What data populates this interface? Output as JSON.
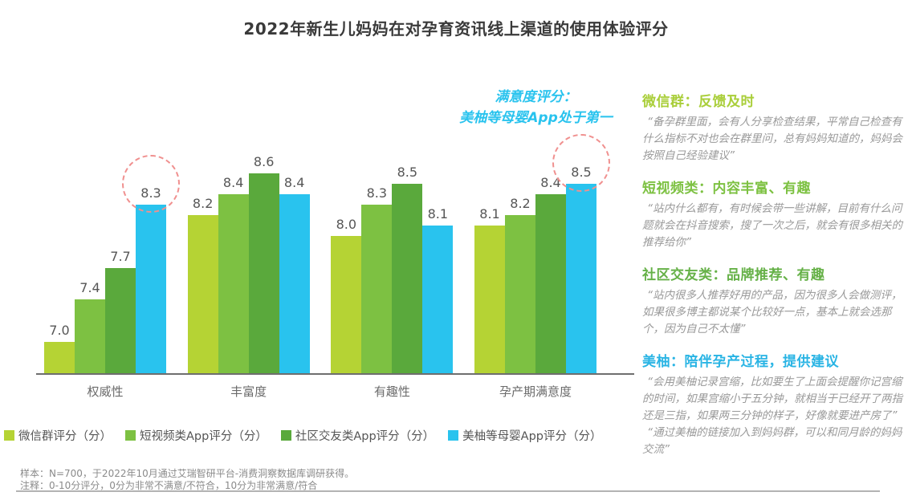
{
  "title": "2022年新生儿妈妈在对孕育资讯线上渠道的使用体验评分",
  "chart_data": {
    "type": "bar",
    "categories": [
      "权威性",
      "丰富度",
      "有趣性",
      "孕产期满意度"
    ],
    "series": [
      {
        "name": "微信群评分（分）",
        "color": "#b5d334",
        "values": [
          7.0,
          8.2,
          8.0,
          8.1
        ]
      },
      {
        "name": "短视频类App评分（分）",
        "color": "#7dc142",
        "values": [
          7.4,
          8.4,
          8.3,
          8.2
        ]
      },
      {
        "name": "社区交友类App评分（分）",
        "color": "#5aa93c",
        "values": [
          7.7,
          8.6,
          8.5,
          8.4
        ]
      },
      {
        "name": "美柚等母婴App评分（分）",
        "color": "#29c3ee",
        "values": [
          8.3,
          8.4,
          8.1,
          8.5
        ]
      }
    ],
    "ylim": [
      6.7,
      9.0
    ],
    "grid": false,
    "legend_position": "bottom",
    "value_label_decimals": 1,
    "annotation": {
      "line1": "满意度评分：",
      "line2": "美柚等母婴App处于第一",
      "color": "#29c3ee"
    },
    "highlight_circles": [
      {
        "category_index": 0,
        "series_index": 3,
        "color": "#f0908f"
      },
      {
        "category_index": 3,
        "series_index": 3,
        "color": "#f0908f"
      }
    ]
  },
  "right_panel": {
    "sections": [
      {
        "header": "微信群：反馈及时",
        "header_color": "#a9ce39",
        "quotes": [
          "“备孕群里面，会有人分享检查结果，平常自己检查有什么指标不对也会在群里问，总有妈妈知道的，妈妈会按照自己经验建议”"
        ]
      },
      {
        "header": "短视频类：内容丰富、有趣",
        "header_color": "#7dc142",
        "quotes": [
          "“站内什么都有，有时候会带一些讲解，目前有什么问题就会在抖音搜索，搜了一次之后，就会有很多相关的推荐给你”"
        ]
      },
      {
        "header": "社区交友类：品牌推荐、有趣",
        "header_color": "#66b148",
        "quotes": [
          "“站内很多人推荐好用的产品，因为很多人会做测评，如果很多博主都说某个比较好一点，基本上就会选那个，因为自己不太懂”"
        ]
      },
      {
        "header": "美柚：陪伴孕产过程，提供建议",
        "header_color": "#29b4e4",
        "quotes": [
          "“会用美柚记录宫缩，比如要生了上面会提醒你记宫缩的时间，如果宫缩小于五分钟，就相当于已经开了两指还是三指，如果两三分钟的样子，好像就要进产房了”",
          "“通过美柚的链接加入到妈妈群，可以和同月龄的妈妈交流”"
        ]
      }
    ]
  },
  "footer": {
    "line1": "样本：N=700，于2022年10月通过艾瑞智研平台-消费洞察数据库调研获得。",
    "line2": "注释：0-10分评分，0分为非常不满意/不符合，10分为非常满意/符合"
  }
}
